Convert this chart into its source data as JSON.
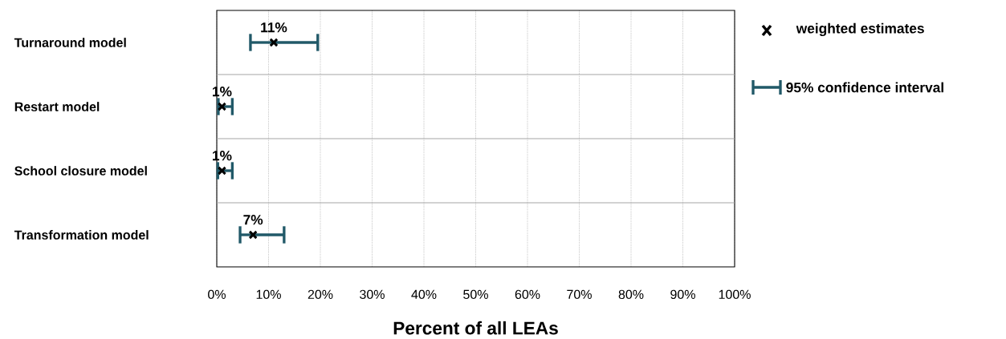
{
  "chart_data": {
    "type": "scatter",
    "orientation": "horizontal",
    "xlabel": "Percent of all LEAs",
    "categories": [
      "Turnaround model",
      "Restart model",
      "School closure model",
      "Transformation model"
    ],
    "series": [
      {
        "name": "weighted estimates",
        "color": "#000000",
        "values": [
          11,
          1,
          1,
          7
        ],
        "value_labels": [
          "11%",
          "1%",
          "1%",
          "7%"
        ],
        "errors": [
          [
            6.5,
            19.5
          ],
          [
            0.3,
            3.0
          ],
          [
            0.2,
            3.0
          ],
          [
            4.5,
            13.0
          ]
        ]
      }
    ],
    "annotations": [
      "95% confidence interval"
    ],
    "xlim": [
      0,
      100
    ],
    "xticks": [
      {
        "value": 0,
        "label": "0%"
      },
      {
        "value": 10,
        "label": "10%"
      },
      {
        "value": 20,
        "label": "20%"
      },
      {
        "value": 30,
        "label": "30%"
      },
      {
        "value": 40,
        "label": "40%"
      },
      {
        "value": 50,
        "label": "50%"
      },
      {
        "value": 60,
        "label": "60%"
      },
      {
        "value": 70,
        "label": "70%"
      },
      {
        "value": 80,
        "label": "80%"
      },
      {
        "value": 90,
        "label": "90%"
      },
      {
        "value": 100,
        "label": "100%"
      }
    ],
    "grid": "x",
    "marker": "cross",
    "legend": "top right"
  }
}
